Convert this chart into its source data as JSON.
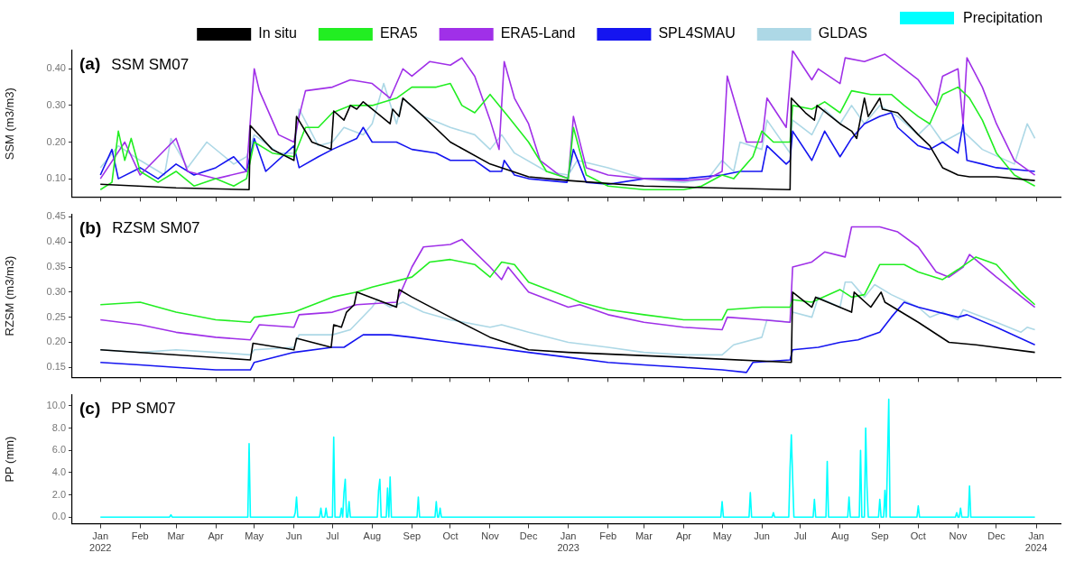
{
  "chart_data": [
    {
      "type": "line",
      "title": "(a) SSM SM07",
      "ylabel": "SSM (m3/m3)",
      "legend": "top",
      "tick_labels": "y",
      "xlim": [
        "2021-12-10",
        "2024-01-20"
      ],
      "xticks": [
        {
          "value": "2022-01-01",
          "label": null
        },
        {
          "value": "2022-02-01",
          "label": null
        },
        {
          "value": "2022-03-01",
          "label": null
        },
        {
          "value": "2022-04-01",
          "label": null
        },
        {
          "value": "2022-05-01",
          "label": null
        },
        {
          "value": "2022-06-01",
          "label": null
        },
        {
          "value": "2022-07-01",
          "label": null
        },
        {
          "value": "2022-08-01",
          "label": null
        },
        {
          "value": "2022-09-01",
          "label": null
        },
        {
          "value": "2022-10-01",
          "label": null
        },
        {
          "value": "2022-11-01",
          "label": null
        },
        {
          "value": "2022-12-01",
          "label": null
        },
        {
          "value": "2023-01-01",
          "label": null
        },
        {
          "value": "2023-02-01",
          "label": null
        },
        {
          "value": "2023-03-01",
          "label": null
        },
        {
          "value": "2023-04-01",
          "label": null
        },
        {
          "value": "2023-05-01",
          "label": null
        },
        {
          "value": "2023-06-01",
          "label": null
        },
        {
          "value": "2023-07-01",
          "label": null
        },
        {
          "value": "2023-08-01",
          "label": null
        },
        {
          "value": "2023-09-01",
          "label": null
        },
        {
          "value": "2023-10-01",
          "label": null
        },
        {
          "value": "2023-11-01",
          "label": null
        },
        {
          "value": "2023-12-01",
          "label": null
        },
        {
          "value": "2024-01-01",
          "label": null
        }
      ],
      "ylim": [
        0.05,
        0.45
      ],
      "yticks": [
        {
          "value": 0.1,
          "label": "0.10"
        },
        {
          "value": 0.2,
          "label": "0.20"
        },
        {
          "value": 0.3,
          "label": "0.30"
        },
        {
          "value": 0.4,
          "label": "0.40"
        }
      ],
      "series": [
        {
          "name": "In situ",
          "color": "#000000",
          "x": [
            "2022-01-01",
            "2022-03-01",
            "2022-04-27",
            "2022-04-28",
            "2022-05-15",
            "2022-06-01",
            "2022-06-03",
            "2022-06-15",
            "2022-06-30",
            "2022-07-02",
            "2022-07-10",
            "2022-07-15",
            "2022-07-20",
            "2022-07-25",
            "2022-08-01",
            "2022-08-15",
            "2022-08-17",
            "2022-08-22",
            "2022-08-25",
            "2022-09-10",
            "2022-10-01",
            "2022-11-01",
            "2022-12-01",
            "2023-01-01",
            "2023-03-01",
            "2023-06-23",
            "2023-06-24",
            "2023-07-05",
            "2023-07-12",
            "2023-07-14",
            "2023-08-01",
            "2023-08-10",
            "2023-08-14",
            "2023-08-20",
            "2023-08-23",
            "2023-09-01",
            "2023-09-03",
            "2023-09-15",
            "2023-10-01",
            "2023-10-10",
            "2023-10-20",
            "2023-11-01",
            "2023-11-10",
            "2023-12-01",
            "2023-12-31"
          ],
          "values": [
            0.085,
            0.075,
            0.07,
            0.245,
            0.18,
            0.15,
            0.27,
            0.2,
            0.18,
            0.285,
            0.26,
            0.3,
            0.29,
            0.31,
            0.29,
            0.25,
            0.29,
            0.27,
            0.32,
            0.27,
            0.2,
            0.14,
            0.105,
            0.095,
            0.08,
            0.07,
            0.32,
            0.28,
            0.26,
            0.3,
            0.25,
            0.23,
            0.21,
            0.32,
            0.27,
            0.32,
            0.29,
            0.28,
            0.22,
            0.19,
            0.13,
            0.11,
            0.105,
            0.105,
            0.095
          ]
        },
        {
          "name": "ERA5",
          "color": "#22ee22",
          "x": [
            "2022-01-01",
            "2022-01-10",
            "2022-01-15",
            "2022-01-20",
            "2022-01-25",
            "2022-02-01",
            "2022-02-15",
            "2022-03-01",
            "2022-03-15",
            "2022-04-01",
            "2022-04-15",
            "2022-04-25",
            "2022-05-01",
            "2022-05-15",
            "2022-06-01",
            "2022-06-10",
            "2022-06-20",
            "2022-07-01",
            "2022-07-15",
            "2022-08-01",
            "2022-08-20",
            "2022-09-01",
            "2022-09-20",
            "2022-10-01",
            "2022-10-10",
            "2022-10-20",
            "2022-11-01",
            "2022-11-15",
            "2022-12-01",
            "2022-12-15",
            "2023-01-01",
            "2023-01-05",
            "2023-01-15",
            "2023-02-01",
            "2023-03-01",
            "2023-04-01",
            "2023-04-15",
            "2023-05-01",
            "2023-05-10",
            "2023-05-25",
            "2023-06-01",
            "2023-06-10",
            "2023-06-23",
            "2023-06-25",
            "2023-07-10",
            "2023-07-20",
            "2023-08-01",
            "2023-08-10",
            "2023-08-25",
            "2023-09-10",
            "2023-09-20",
            "2023-10-01",
            "2023-10-10",
            "2023-10-20",
            "2023-11-01",
            "2023-11-10",
            "2023-11-20",
            "2023-12-01",
            "2023-12-15",
            "2023-12-31"
          ],
          "values": [
            0.07,
            0.09,
            0.23,
            0.15,
            0.21,
            0.12,
            0.09,
            0.12,
            0.08,
            0.1,
            0.08,
            0.1,
            0.2,
            0.17,
            0.16,
            0.24,
            0.24,
            0.28,
            0.3,
            0.3,
            0.32,
            0.35,
            0.35,
            0.36,
            0.3,
            0.28,
            0.33,
            0.27,
            0.2,
            0.12,
            0.1,
            0.24,
            0.11,
            0.08,
            0.07,
            0.07,
            0.08,
            0.11,
            0.1,
            0.16,
            0.23,
            0.2,
            0.2,
            0.3,
            0.29,
            0.31,
            0.28,
            0.34,
            0.33,
            0.33,
            0.3,
            0.27,
            0.25,
            0.33,
            0.35,
            0.32,
            0.26,
            0.17,
            0.11,
            0.08
          ]
        },
        {
          "name": "ERA5-Land",
          "color": "#a030e8",
          "x": [
            "2022-01-01",
            "2022-01-20",
            "2022-02-01",
            "2022-03-01",
            "2022-03-10",
            "2022-04-01",
            "2022-04-25",
            "2022-05-01",
            "2022-05-05",
            "2022-05-20",
            "2022-06-01",
            "2022-06-05",
            "2022-06-10",
            "2022-07-01",
            "2022-07-15",
            "2022-08-01",
            "2022-08-15",
            "2022-08-25",
            "2022-09-01",
            "2022-09-15",
            "2022-10-01",
            "2022-10-10",
            "2022-10-20",
            "2022-11-01",
            "2022-11-08",
            "2022-11-12",
            "2022-11-20",
            "2022-12-01",
            "2022-12-10",
            "2022-12-25",
            "2023-01-01",
            "2023-01-05",
            "2023-01-15",
            "2023-02-01",
            "2023-03-01",
            "2023-04-01",
            "2023-04-20",
            "2023-05-01",
            "2023-05-05",
            "2023-05-20",
            "2023-06-01",
            "2023-06-05",
            "2023-06-20",
            "2023-06-25",
            "2023-07-10",
            "2023-07-15",
            "2023-08-01",
            "2023-08-05",
            "2023-08-20",
            "2023-09-05",
            "2023-09-20",
            "2023-10-01",
            "2023-10-15",
            "2023-10-20",
            "2023-11-01",
            "2023-11-05",
            "2023-11-08",
            "2023-11-20",
            "2023-12-01",
            "2023-12-15",
            "2023-12-31"
          ],
          "values": [
            0.1,
            0.2,
            0.11,
            0.21,
            0.12,
            0.1,
            0.12,
            0.4,
            0.34,
            0.22,
            0.2,
            0.27,
            0.34,
            0.35,
            0.37,
            0.36,
            0.32,
            0.4,
            0.38,
            0.42,
            0.41,
            0.43,
            0.38,
            0.26,
            0.18,
            0.42,
            0.32,
            0.25,
            0.15,
            0.11,
            0.1,
            0.27,
            0.13,
            0.11,
            0.1,
            0.095,
            0.1,
            0.12,
            0.38,
            0.2,
            0.2,
            0.32,
            0.24,
            0.45,
            0.37,
            0.4,
            0.36,
            0.43,
            0.42,
            0.44,
            0.4,
            0.37,
            0.3,
            0.38,
            0.4,
            0.25,
            0.43,
            0.35,
            0.25,
            0.15,
            0.11
          ]
        },
        {
          "name": "SPL4SMAU",
          "color": "#1515f0",
          "x": [
            "2022-01-01",
            "2022-01-10",
            "2022-01-15",
            "2022-02-01",
            "2022-02-15",
            "2022-03-01",
            "2022-03-15",
            "2022-04-01",
            "2022-04-15",
            "2022-04-25",
            "2022-05-01",
            "2022-05-10",
            "2022-06-01",
            "2022-06-05",
            "2022-06-20",
            "2022-07-01",
            "2022-07-20",
            "2022-07-25",
            "2022-08-01",
            "2022-08-20",
            "2022-09-01",
            "2022-09-20",
            "2022-10-01",
            "2022-10-20",
            "2022-11-01",
            "2022-11-10",
            "2022-11-12",
            "2022-11-20",
            "2022-12-01",
            "2022-12-31",
            "2023-01-05",
            "2023-01-15",
            "2023-02-01",
            "2023-03-01",
            "2023-04-01",
            "2023-05-01",
            "2023-05-15",
            "2023-06-01",
            "2023-06-05",
            "2023-06-20",
            "2023-06-23",
            "2023-06-25",
            "2023-07-10",
            "2023-07-20",
            "2023-08-01",
            "2023-08-10",
            "2023-08-20",
            "2023-09-01",
            "2023-09-10",
            "2023-09-15",
            "2023-10-01",
            "2023-10-10",
            "2023-10-20",
            "2023-11-01",
            "2023-11-05",
            "2023-11-08",
            "2023-11-20",
            "2023-12-01",
            "2023-12-31"
          ],
          "values": [
            0.11,
            0.18,
            0.1,
            0.13,
            0.1,
            0.14,
            0.11,
            0.13,
            0.16,
            0.12,
            0.21,
            0.12,
            0.19,
            0.13,
            0.16,
            0.18,
            0.21,
            0.24,
            0.2,
            0.2,
            0.18,
            0.17,
            0.15,
            0.15,
            0.12,
            0.12,
            0.15,
            0.11,
            0.1,
            0.09,
            0.18,
            0.09,
            0.085,
            0.1,
            0.1,
            0.11,
            0.12,
            0.12,
            0.19,
            0.14,
            0.15,
            0.23,
            0.15,
            0.23,
            0.16,
            0.21,
            0.25,
            0.27,
            0.28,
            0.24,
            0.19,
            0.18,
            0.2,
            0.17,
            0.25,
            0.15,
            0.14,
            0.13,
            0.12
          ]
        },
        {
          "name": "GLDAS",
          "color": "#add8e6",
          "x": [
            "2022-01-01",
            "2022-01-15",
            "2022-02-01",
            "2022-02-20",
            "2022-02-25",
            "2022-03-10",
            "2022-03-25",
            "2022-04-15",
            "2022-04-25",
            "2022-05-01",
            "2022-05-20",
            "2022-06-01",
            "2022-06-05",
            "2022-06-20",
            "2022-07-01",
            "2022-07-10",
            "2022-07-25",
            "2022-08-01",
            "2022-08-10",
            "2022-08-20",
            "2022-08-25",
            "2022-09-10",
            "2022-10-01",
            "2022-10-20",
            "2022-11-01",
            "2022-11-10",
            "2022-11-20",
            "2022-12-15",
            "2023-01-01",
            "2023-01-08",
            "2023-02-01",
            "2023-03-01",
            "2023-04-01",
            "2023-04-20",
            "2023-05-01",
            "2023-05-10",
            "2023-05-15",
            "2023-06-01",
            "2023-06-05",
            "2023-06-23",
            "2023-06-25",
            "2023-07-10",
            "2023-07-20",
            "2023-08-01",
            "2023-08-10",
            "2023-08-20",
            "2023-09-01",
            "2023-09-15",
            "2023-10-01",
            "2023-10-10",
            "2023-10-20",
            "2023-11-05",
            "2023-11-20",
            "2023-12-15",
            "2023-12-25",
            "2023-12-31"
          ],
          "values": [
            0.13,
            0.19,
            0.15,
            0.11,
            0.21,
            0.13,
            0.2,
            0.14,
            0.16,
            0.22,
            0.17,
            0.17,
            0.29,
            0.19,
            0.2,
            0.24,
            0.22,
            0.25,
            0.36,
            0.25,
            0.32,
            0.27,
            0.24,
            0.22,
            0.18,
            0.22,
            0.17,
            0.12,
            0.11,
            0.15,
            0.13,
            0.1,
            0.09,
            0.1,
            0.15,
            0.12,
            0.2,
            0.18,
            0.26,
            0.17,
            0.26,
            0.22,
            0.29,
            0.25,
            0.3,
            0.25,
            0.3,
            0.27,
            0.22,
            0.25,
            0.2,
            0.23,
            0.18,
            0.14,
            0.25,
            0.21
          ]
        }
      ]
    },
    {
      "type": "line",
      "title": "(b) RZSM SM07",
      "ylabel": "RZSM (m3/m3)",
      "tick_labels": "y",
      "xlim": [
        "2021-12-10",
        "2024-01-20"
      ],
      "xticks": [
        {
          "value": "2022-01-01",
          "label": null
        },
        {
          "value": "2022-02-01",
          "label": null
        },
        {
          "value": "2022-03-01",
          "label": null
        },
        {
          "value": "2022-04-01",
          "label": null
        },
        {
          "value": "2022-05-01",
          "label": null
        },
        {
          "value": "2022-06-01",
          "label": null
        },
        {
          "value": "2022-07-01",
          "label": null
        },
        {
          "value": "2022-08-01",
          "label": null
        },
        {
          "value": "2022-09-01",
          "label": null
        },
        {
          "value": "2022-10-01",
          "label": null
        },
        {
          "value": "2022-11-01",
          "label": null
        },
        {
          "value": "2022-12-01",
          "label": null
        },
        {
          "value": "2023-01-01",
          "label": null
        },
        {
          "value": "2023-02-01",
          "label": null
        },
        {
          "value": "2023-03-01",
          "label": null
        },
        {
          "value": "2023-04-01",
          "label": null
        },
        {
          "value": "2023-05-01",
          "label": null
        },
        {
          "value": "2023-06-01",
          "label": null
        },
        {
          "value": "2023-07-01",
          "label": null
        },
        {
          "value": "2023-08-01",
          "label": null
        },
        {
          "value": "2023-09-01",
          "label": null
        },
        {
          "value": "2023-10-01",
          "label": null
        },
        {
          "value": "2023-11-01",
          "label": null
        },
        {
          "value": "2023-12-01",
          "label": null
        },
        {
          "value": "2024-01-01",
          "label": null
        }
      ],
      "ylim": [
        0.13,
        0.455
      ],
      "yticks": [
        {
          "value": 0.15,
          "label": "0.15"
        },
        {
          "value": 0.2,
          "label": "0.20"
        },
        {
          "value": 0.25,
          "label": "0.25"
        },
        {
          "value": 0.3,
          "label": "0.30"
        },
        {
          "value": 0.35,
          "label": "0.35"
        },
        {
          "value": 0.4,
          "label": "0.40"
        },
        {
          "value": 0.45,
          "label": "0.45"
        }
      ],
      "series": [
        {
          "color": "#000000",
          "x": [
            "2022-01-01",
            "2022-04-28",
            "2022-04-30",
            "2022-06-01",
            "2022-06-03",
            "2022-06-30",
            "2022-07-02",
            "2022-07-08",
            "2022-07-12",
            "2022-07-18",
            "2022-07-20",
            "2022-07-25",
            "2022-08-20",
            "2022-08-22",
            "2022-09-01",
            "2022-10-01",
            "2022-11-01",
            "2022-12-01",
            "2023-01-01",
            "2023-04-01",
            "2023-06-24",
            "2023-06-25",
            "2023-07-10",
            "2023-07-13",
            "2023-08-10",
            "2023-08-12",
            "2023-08-25",
            "2023-09-02",
            "2023-09-05",
            "2023-10-01",
            "2023-10-25",
            "2023-11-15",
            "2023-12-31"
          ],
          "values": [
            0.185,
            0.165,
            0.198,
            0.185,
            0.208,
            0.19,
            0.235,
            0.23,
            0.26,
            0.275,
            0.3,
            0.295,
            0.27,
            0.305,
            0.29,
            0.25,
            0.21,
            0.185,
            0.18,
            0.17,
            0.16,
            0.3,
            0.27,
            0.29,
            0.26,
            0.3,
            0.27,
            0.3,
            0.28,
            0.24,
            0.2,
            0.195,
            0.18
          ]
        },
        {
          "color": "#22ee22",
          "x": [
            "2022-01-01",
            "2022-02-01",
            "2022-03-01",
            "2022-04-01",
            "2022-04-28",
            "2022-05-01",
            "2022-06-01",
            "2022-07-01",
            "2022-07-20",
            "2022-08-01",
            "2022-09-01",
            "2022-09-15",
            "2022-10-01",
            "2022-10-20",
            "2022-11-01",
            "2022-11-10",
            "2022-11-20",
            "2022-12-01",
            "2023-01-01",
            "2023-01-10",
            "2023-02-01",
            "2023-03-01",
            "2023-04-01",
            "2023-05-01",
            "2023-05-05",
            "2023-06-01",
            "2023-06-23",
            "2023-06-25",
            "2023-07-10",
            "2023-08-01",
            "2023-08-10",
            "2023-08-20",
            "2023-09-01",
            "2023-09-20",
            "2023-10-01",
            "2023-10-20",
            "2023-11-01",
            "2023-11-15",
            "2023-12-01",
            "2023-12-20",
            "2023-12-31"
          ],
          "values": [
            0.275,
            0.28,
            0.26,
            0.245,
            0.24,
            0.25,
            0.26,
            0.29,
            0.3,
            0.31,
            0.33,
            0.36,
            0.365,
            0.355,
            0.33,
            0.36,
            0.355,
            0.32,
            0.29,
            0.28,
            0.265,
            0.255,
            0.245,
            0.245,
            0.265,
            0.27,
            0.27,
            0.285,
            0.28,
            0.305,
            0.29,
            0.295,
            0.355,
            0.355,
            0.34,
            0.325,
            0.345,
            0.37,
            0.355,
            0.3,
            0.275
          ]
        },
        {
          "color": "#a030e8",
          "x": [
            "2022-01-01",
            "2022-02-01",
            "2022-03-01",
            "2022-04-01",
            "2022-04-28",
            "2022-05-05",
            "2022-06-01",
            "2022-06-05",
            "2022-07-01",
            "2022-07-20",
            "2022-08-20",
            "2022-09-01",
            "2022-09-10",
            "2022-10-01",
            "2022-10-10",
            "2022-11-01",
            "2022-11-10",
            "2022-11-15",
            "2022-12-01",
            "2023-01-01",
            "2023-01-10",
            "2023-02-01",
            "2023-03-01",
            "2023-04-01",
            "2023-05-01",
            "2023-05-05",
            "2023-06-01",
            "2023-06-23",
            "2023-06-25",
            "2023-07-10",
            "2023-07-20",
            "2023-08-05",
            "2023-08-10",
            "2023-09-01",
            "2023-09-15",
            "2023-10-01",
            "2023-10-15",
            "2023-10-25",
            "2023-11-05",
            "2023-11-10",
            "2023-12-01",
            "2023-12-31"
          ],
          "values": [
            0.245,
            0.235,
            0.22,
            0.21,
            0.205,
            0.235,
            0.23,
            0.255,
            0.26,
            0.275,
            0.28,
            0.35,
            0.39,
            0.395,
            0.405,
            0.35,
            0.325,
            0.35,
            0.3,
            0.27,
            0.275,
            0.255,
            0.24,
            0.23,
            0.225,
            0.25,
            0.245,
            0.24,
            0.35,
            0.36,
            0.38,
            0.37,
            0.43,
            0.43,
            0.42,
            0.39,
            0.34,
            0.33,
            0.35,
            0.375,
            0.33,
            0.27
          ]
        },
        {
          "color": "#1515f0",
          "x": [
            "2022-01-01",
            "2022-02-01",
            "2022-03-01",
            "2022-04-01",
            "2022-04-28",
            "2022-05-01",
            "2022-06-01",
            "2022-07-01",
            "2022-07-10",
            "2022-07-25",
            "2022-08-15",
            "2022-09-01",
            "2022-10-01",
            "2022-11-01",
            "2022-12-01",
            "2023-01-01",
            "2023-02-01",
            "2023-03-01",
            "2023-04-01",
            "2023-05-01",
            "2023-05-20",
            "2023-05-25",
            "2023-06-23",
            "2023-06-25",
            "2023-07-15",
            "2023-08-01",
            "2023-08-15",
            "2023-09-01",
            "2023-09-10",
            "2023-09-20",
            "2023-10-01",
            "2023-11-01",
            "2023-11-08",
            "2023-12-01",
            "2023-12-31"
          ],
          "values": [
            0.16,
            0.155,
            0.15,
            0.145,
            0.145,
            0.16,
            0.18,
            0.19,
            0.19,
            0.215,
            0.215,
            0.21,
            0.2,
            0.19,
            0.18,
            0.17,
            0.16,
            0.155,
            0.15,
            0.145,
            0.14,
            0.16,
            0.165,
            0.185,
            0.19,
            0.2,
            0.205,
            0.22,
            0.25,
            0.28,
            0.27,
            0.25,
            0.255,
            0.23,
            0.195
          ]
        },
        {
          "color": "#add8e6",
          "x": [
            "2022-01-01",
            "2022-02-01",
            "2022-03-01",
            "2022-04-01",
            "2022-04-28",
            "2022-05-01",
            "2022-06-01",
            "2022-06-05",
            "2022-07-01",
            "2022-07-15",
            "2022-08-01",
            "2022-08-05",
            "2022-08-15",
            "2022-08-25",
            "2022-09-10",
            "2022-10-01",
            "2022-11-01",
            "2022-11-10",
            "2022-12-01",
            "2023-01-01",
            "2023-02-01",
            "2023-03-01",
            "2023-04-01",
            "2023-05-01",
            "2023-05-10",
            "2023-06-01",
            "2023-06-05",
            "2023-06-23",
            "2023-06-25",
            "2023-07-10",
            "2023-07-15",
            "2023-08-01",
            "2023-08-05",
            "2023-08-10",
            "2023-08-20",
            "2023-08-28",
            "2023-09-10",
            "2023-10-01",
            "2023-10-10",
            "2023-10-20",
            "2023-11-01",
            "2023-11-05",
            "2023-12-01",
            "2023-12-20",
            "2023-12-25",
            "2023-12-31"
          ],
          "values": [
            0.185,
            0.18,
            0.185,
            0.18,
            0.175,
            0.185,
            0.19,
            0.215,
            0.215,
            0.225,
            0.27,
            0.285,
            0.27,
            0.28,
            0.26,
            0.245,
            0.23,
            0.235,
            0.22,
            0.2,
            0.19,
            0.18,
            0.175,
            0.175,
            0.195,
            0.21,
            0.245,
            0.24,
            0.26,
            0.25,
            0.29,
            0.27,
            0.32,
            0.32,
            0.29,
            0.315,
            0.295,
            0.27,
            0.25,
            0.26,
            0.245,
            0.265,
            0.24,
            0.22,
            0.23,
            0.225
          ]
        }
      ]
    },
    {
      "type": "line",
      "title": "(c) PP SM07",
      "ylabel": "PP (mm)",
      "legend": "top",
      "xlim": [
        "2021-12-10",
        "2024-01-20"
      ],
      "xticks": [
        {
          "value": "2022-01-01",
          "label": "Jan\n2022"
        },
        {
          "value": "2022-02-01",
          "label": "Feb"
        },
        {
          "value": "2022-03-01",
          "label": "Mar"
        },
        {
          "value": "2022-04-01",
          "label": "Apr"
        },
        {
          "value": "2022-05-01",
          "label": "May"
        },
        {
          "value": "2022-06-01",
          "label": "Jun"
        },
        {
          "value": "2022-07-01",
          "label": "Jul"
        },
        {
          "value": "2022-08-01",
          "label": "Aug"
        },
        {
          "value": "2022-09-01",
          "label": "Sep"
        },
        {
          "value": "2022-10-01",
          "label": "Oct"
        },
        {
          "value": "2022-11-01",
          "label": "Nov"
        },
        {
          "value": "2022-12-01",
          "label": "Dec"
        },
        {
          "value": "2023-01-01",
          "label": "Jan\n2023"
        },
        {
          "value": "2023-02-01",
          "label": "Feb"
        },
        {
          "value": "2023-03-01",
          "label": "Mar"
        },
        {
          "value": "2023-04-01",
          "label": "Apr"
        },
        {
          "value": "2023-05-01",
          "label": "May"
        },
        {
          "value": "2023-06-01",
          "label": "Jun"
        },
        {
          "value": "2023-07-01",
          "label": "Jul"
        },
        {
          "value": "2023-08-01",
          "label": "Aug"
        },
        {
          "value": "2023-09-01",
          "label": "Sep"
        },
        {
          "value": "2023-10-01",
          "label": "Oct"
        },
        {
          "value": "2023-11-01",
          "label": "Nov"
        },
        {
          "value": "2023-12-01",
          "label": "Dec"
        },
        {
          "value": "2024-01-01",
          "label": "Jan\n2024"
        }
      ],
      "ylim": [
        -0.6,
        11
      ],
      "yticks": [
        {
          "value": 0,
          "label": "0.0"
        },
        {
          "value": 2,
          "label": "2.0"
        },
        {
          "value": 4,
          "label": "4.0"
        },
        {
          "value": 6,
          "label": "6.0"
        },
        {
          "value": 8,
          "label": "8.0"
        },
        {
          "value": 10,
          "label": "10.0"
        }
      ],
      "series": [
        {
          "name": "Precipitation",
          "color": "#00ffff",
          "x": [
            "2022-01-01",
            "2022-02-24",
            "2022-02-25",
            "2022-02-26",
            "2022-04-26",
            "2022-04-27",
            "2022-04-28",
            "2022-06-01",
            "2022-06-02",
            "2022-06-03",
            "2022-06-04",
            "2022-06-21",
            "2022-06-22",
            "2022-06-23",
            "2022-06-25",
            "2022-06-26",
            "2022-06-27",
            "2022-07-01",
            "2022-07-02",
            "2022-07-03",
            "2022-07-07",
            "2022-07-08",
            "2022-07-09",
            "2022-07-10",
            "2022-07-11",
            "2022-07-12",
            "2022-07-13",
            "2022-07-14",
            "2022-07-15",
            "2022-08-05",
            "2022-08-06",
            "2022-08-07",
            "2022-08-08",
            "2022-08-12",
            "2022-08-13",
            "2022-08-14",
            "2022-08-15",
            "2022-08-16",
            "2022-09-05",
            "2022-09-06",
            "2022-09-07",
            "2022-09-19",
            "2022-09-20",
            "2022-09-21",
            "2022-09-22",
            "2022-09-23",
            "2022-09-24",
            "2023-04-30",
            "2023-05-01",
            "2023-05-02",
            "2023-05-22",
            "2023-05-23",
            "2023-05-24",
            "2023-06-09",
            "2023-06-10",
            "2023-06-11",
            "2023-06-22",
            "2023-06-23",
            "2023-06-24",
            "2023-06-25",
            "2023-06-26",
            "2023-07-11",
            "2023-07-12",
            "2023-07-13",
            "2023-07-21",
            "2023-07-22",
            "2023-07-23",
            "2023-08-07",
            "2023-08-08",
            "2023-08-09",
            "2023-08-16",
            "2023-08-17",
            "2023-08-18",
            "2023-08-20",
            "2023-08-21",
            "2023-08-22",
            "2023-08-23",
            "2023-08-31",
            "2023-09-01",
            "2023-09-02",
            "2023-09-04",
            "2023-09-05",
            "2023-09-06",
            "2023-09-07",
            "2023-09-08",
            "2023-09-09",
            "2023-09-30",
            "2023-10-01",
            "2023-10-02",
            "2023-10-30",
            "2023-10-31",
            "2023-11-01",
            "2023-11-02",
            "2023-11-03",
            "2023-11-04",
            "2023-11-09",
            "2023-11-10",
            "2023-11-11",
            "2023-12-31"
          ],
          "values": [
            0,
            0,
            0.2,
            0,
            0,
            6.6,
            0,
            0,
            0.4,
            1.8,
            0,
            0,
            0.8,
            0,
            0,
            0.8,
            0,
            0,
            7.2,
            0,
            0,
            0.8,
            0,
            2.2,
            3.4,
            0,
            0,
            1.4,
            0,
            0,
            2.4,
            3.4,
            0,
            0,
            2.6,
            0,
            3.6,
            0,
            0,
            1.8,
            0,
            0,
            1.4,
            0,
            0,
            0.8,
            0,
            0,
            1.4,
            0,
            0,
            2.2,
            0,
            0,
            0.4,
            0,
            0,
            4.4,
            7.4,
            3.6,
            0,
            0,
            1.6,
            0,
            0,
            5,
            0,
            0,
            1.8,
            0,
            0,
            6,
            0,
            0,
            8,
            2.8,
            0,
            0,
            1.6,
            0,
            0,
            2.4,
            0,
            5,
            10.6,
            0,
            0,
            1,
            0,
            0,
            0.4,
            0,
            0,
            0.8,
            0,
            0,
            2.8,
            0,
            0
          ]
        }
      ]
    }
  ]
}
